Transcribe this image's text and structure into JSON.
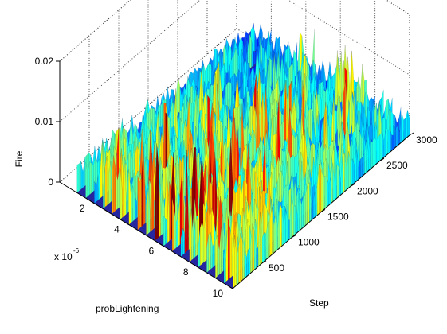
{
  "chart_data": {
    "type": "surface3d",
    "title": "",
    "xlabel": "Step",
    "ylabel": "probLightening",
    "zlabel": "Fire",
    "y_multiplier_label": "x 10",
    "y_multiplier_exponent": "-6",
    "xlim": [
      0,
      3000
    ],
    "ylim": [
      0,
      10
    ],
    "zlim": [
      0,
      0.02
    ],
    "x_ticks": [
      500,
      1000,
      1500,
      2000,
      2500,
      3000
    ],
    "x_tick_labels": [
      "500",
      "1000",
      "1500",
      "2000",
      "2500",
      "3000"
    ],
    "y_ticks": [
      2,
      4,
      6,
      8,
      10
    ],
    "y_tick_labels": [
      "2",
      "4",
      "6",
      "8",
      "10"
    ],
    "z_ticks": [
      0,
      0.01,
      0.02
    ],
    "z_tick_labels": [
      "0",
      "0.01",
      "0.02"
    ],
    "grid": true,
    "box": true,
    "colormap": "jet",
    "colormap_stops": [
      "#00008f",
      "#0000ff",
      "#0080ff",
      "#00ffff",
      "#80ff80",
      "#ffff00",
      "#ff8000",
      "#ff0000",
      "#800000"
    ],
    "series": [
      {
        "y": 1.0,
        "peak_fire": 0.008,
        "mean_fire": 0.004
      },
      {
        "y": 1.5,
        "peak_fire": 0.009,
        "mean_fire": 0.005
      },
      {
        "y": 2.0,
        "peak_fire": 0.01,
        "mean_fire": 0.005
      },
      {
        "y": 2.5,
        "peak_fire": 0.012,
        "mean_fire": 0.005
      },
      {
        "y": 3.0,
        "peak_fire": 0.012,
        "mean_fire": 0.005
      },
      {
        "y": 3.5,
        "peak_fire": 0.013,
        "mean_fire": 0.005
      },
      {
        "y": 4.0,
        "peak_fire": 0.014,
        "mean_fire": 0.005
      },
      {
        "y": 4.5,
        "peak_fire": 0.015,
        "mean_fire": 0.006
      },
      {
        "y": 5.0,
        "peak_fire": 0.016,
        "mean_fire": 0.006
      },
      {
        "y": 5.5,
        "peak_fire": 0.016,
        "mean_fire": 0.006
      },
      {
        "y": 6.0,
        "peak_fire": 0.017,
        "mean_fire": 0.006
      },
      {
        "y": 6.5,
        "peak_fire": 0.017,
        "mean_fire": 0.006
      },
      {
        "y": 7.0,
        "peak_fire": 0.018,
        "mean_fire": 0.006
      },
      {
        "y": 7.5,
        "peak_fire": 0.017,
        "mean_fire": 0.006
      },
      {
        "y": 8.0,
        "peak_fire": 0.016,
        "mean_fire": 0.006
      },
      {
        "y": 8.5,
        "peak_fire": 0.015,
        "mean_fire": 0.006
      },
      {
        "y": 9.0,
        "peak_fire": 0.014,
        "mean_fire": 0.006
      },
      {
        "y": 9.5,
        "peak_fire": 0.013,
        "mean_fire": 0.006
      },
      {
        "y": 10.0,
        "peak_fire": 0.011,
        "mean_fire": 0.006
      }
    ]
  }
}
